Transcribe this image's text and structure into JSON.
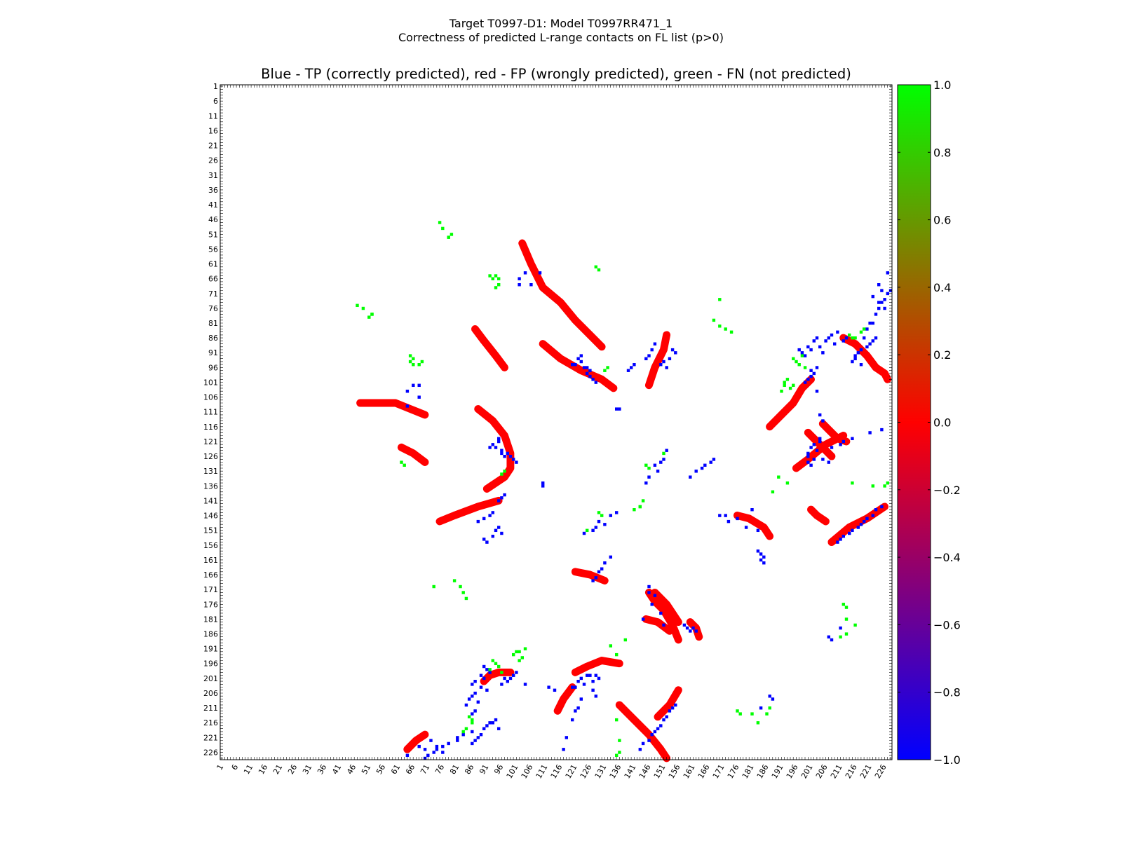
{
  "figure": {
    "title_line1": "Target T0997-D1: Model T0997RR471_1",
    "title_line2": "Correctness of predicted L-range contacts on FL list (p>0)",
    "plot_title": "Blue - TP (correctly predicted), red - FP (wrongly predicted), green - FN (not predicted)"
  },
  "chart_data": {
    "type": "heatmap",
    "n": 228,
    "ticks": [
      1,
      6,
      11,
      16,
      21,
      26,
      31,
      36,
      41,
      46,
      51,
      56,
      61,
      66,
      71,
      76,
      81,
      86,
      91,
      96,
      101,
      106,
      111,
      116,
      121,
      126,
      131,
      136,
      141,
      146,
      151,
      156,
      161,
      166,
      171,
      176,
      181,
      186,
      191,
      196,
      201,
      206,
      211,
      216,
      221,
      226
    ],
    "colorbar": {
      "range": [
        -1.0,
        1.0
      ],
      "tick_values": [
        1.0,
        0.8,
        0.6,
        0.4,
        0.2,
        0.0,
        -0.2,
        -0.4,
        -0.6,
        -0.8,
        -1.0
      ],
      "tick_labels": [
        "1.0",
        "0.8",
        "0.6",
        "0.4",
        "0.2",
        "0.0",
        "−0.2",
        "−0.4",
        "−0.6",
        "−0.8",
        "−1.0"
      ],
      "colors": [
        "#0000ff",
        "#ff0000",
        "#00ff00"
      ]
    },
    "categories": {
      "TP": {
        "value": -1,
        "color": "#0000ff"
      },
      "FP": {
        "value": 0,
        "color": "#ff0000"
      },
      "FN": {
        "value": 1,
        "color": "#00ff00"
      }
    },
    "contacts_TP": [
      [
        64,
        104
      ],
      [
        64,
        109
      ],
      [
        66,
        102
      ],
      [
        68,
        102
      ],
      [
        68,
        106
      ],
      [
        95,
        120
      ],
      [
        95,
        121
      ],
      [
        93,
        122
      ],
      [
        92,
        123
      ],
      [
        110,
        135
      ],
      [
        110,
        136
      ],
      [
        130,
        164
      ],
      [
        131,
        162
      ],
      [
        133,
        160
      ],
      [
        129,
        165
      ],
      [
        128,
        167
      ],
      [
        127,
        168
      ],
      [
        150,
        128
      ],
      [
        151,
        127
      ],
      [
        152,
        124
      ],
      [
        148,
        129
      ],
      [
        149,
        131
      ],
      [
        146,
        133
      ],
      [
        145,
        135
      ],
      [
        129,
        201
      ],
      [
        127,
        205
      ],
      [
        128,
        207
      ],
      [
        123,
        208
      ],
      [
        122,
        211
      ],
      [
        121,
        212
      ],
      [
        120,
        215
      ],
      [
        118,
        221
      ],
      [
        117,
        225
      ],
      [
        123,
        94
      ],
      [
        124,
        96
      ],
      [
        125,
        98
      ],
      [
        126,
        99
      ],
      [
        127,
        100
      ],
      [
        128,
        101
      ],
      [
        125,
        96
      ],
      [
        126,
        97
      ],
      [
        140,
        96
      ],
      [
        141,
        95
      ],
      [
        139,
        97
      ],
      [
        150,
        95
      ],
      [
        151,
        94
      ],
      [
        152,
        96
      ],
      [
        154,
        90
      ],
      [
        155,
        91
      ],
      [
        153,
        93
      ],
      [
        147,
        90
      ],
      [
        146,
        92
      ],
      [
        148,
        88
      ],
      [
        145,
        93
      ],
      [
        173,
        148
      ],
      [
        172,
        146
      ],
      [
        170,
        146
      ],
      [
        176,
        147
      ],
      [
        179,
        150
      ],
      [
        181,
        144
      ],
      [
        183,
        151
      ],
      [
        197,
        90
      ],
      [
        198,
        91
      ],
      [
        199,
        92
      ],
      [
        200,
        89
      ],
      [
        201,
        90
      ],
      [
        202,
        87
      ],
      [
        203,
        86
      ],
      [
        204,
        89
      ],
      [
        205,
        91
      ],
      [
        206,
        87
      ],
      [
        207,
        86
      ],
      [
        208,
        85
      ],
      [
        209,
        88
      ],
      [
        210,
        84
      ],
      [
        212,
        87
      ],
      [
        213,
        86
      ],
      [
        219,
        86
      ],
      [
        220,
        83
      ],
      [
        221,
        81
      ],
      [
        222,
        81
      ],
      [
        223,
        78
      ],
      [
        224,
        76
      ],
      [
        225,
        74
      ],
      [
        226,
        73
      ],
      [
        227,
        71
      ],
      [
        228,
        70
      ],
      [
        97,
        201
      ],
      [
        98,
        202
      ],
      [
        99,
        201
      ],
      [
        100,
        200
      ],
      [
        101,
        199
      ],
      [
        96,
        203
      ],
      [
        104,
        203
      ],
      [
        112,
        204
      ],
      [
        114,
        205
      ],
      [
        120,
        204
      ],
      [
        121,
        204
      ],
      [
        122,
        202
      ],
      [
        123,
        201
      ],
      [
        124,
        203
      ],
      [
        125,
        200
      ],
      [
        126,
        200
      ],
      [
        127,
        202
      ],
      [
        128,
        200
      ],
      [
        146,
        222
      ],
      [
        147,
        220
      ],
      [
        148,
        219
      ],
      [
        149,
        218
      ],
      [
        150,
        217
      ],
      [
        151,
        215
      ],
      [
        152,
        214
      ],
      [
        153,
        212
      ],
      [
        154,
        211
      ],
      [
        155,
        210
      ],
      [
        144,
        223
      ],
      [
        143,
        225
      ],
      [
        158,
        183
      ],
      [
        159,
        184
      ],
      [
        160,
        185
      ],
      [
        161,
        184
      ],
      [
        162,
        185
      ],
      [
        86,
        223
      ],
      [
        87,
        222
      ],
      [
        88,
        221
      ],
      [
        89,
        220
      ],
      [
        90,
        218
      ],
      [
        91,
        217
      ],
      [
        92,
        216
      ],
      [
        93,
        216
      ],
      [
        94,
        215
      ],
      [
        95,
        218
      ],
      [
        64,
        227
      ],
      [
        68,
        224
      ],
      [
        70,
        225
      ],
      [
        72,
        222
      ],
      [
        74,
        224
      ],
      [
        76,
        226
      ],
      [
        187,
        207
      ],
      [
        188,
        208
      ],
      [
        184,
        211
      ]
    ],
    "contacts_FN": [
      [
        47,
        75
      ],
      [
        49,
        76
      ],
      [
        52,
        78
      ],
      [
        65,
        94
      ],
      [
        66,
        95
      ],
      [
        68,
        95
      ],
      [
        78,
        52
      ],
      [
        79,
        51
      ],
      [
        92,
        65
      ],
      [
        93,
        66
      ],
      [
        94,
        69
      ],
      [
        100,
        193
      ],
      [
        101,
        192
      ],
      [
        102,
        195
      ],
      [
        104,
        191
      ],
      [
        103,
        194
      ],
      [
        135,
        215
      ],
      [
        136,
        222
      ],
      [
        141,
        144
      ],
      [
        143,
        143
      ],
      [
        131,
        97
      ],
      [
        132,
        96
      ],
      [
        170,
        73
      ],
      [
        172,
        83
      ],
      [
        174,
        84
      ],
      [
        195,
        93
      ],
      [
        196,
        94
      ],
      [
        197,
        95
      ],
      [
        198,
        92
      ],
      [
        199,
        96
      ],
      [
        192,
        102
      ],
      [
        186,
        213
      ],
      [
        187,
        211
      ],
      [
        177,
        213
      ],
      [
        176,
        212
      ],
      [
        218,
        84
      ],
      [
        219,
        83
      ],
      [
        216,
        86
      ],
      [
        213,
        181
      ],
      [
        216,
        183
      ],
      [
        145,
        129
      ],
      [
        146,
        130
      ],
      [
        151,
        125
      ],
      [
        226,
        136
      ],
      [
        227,
        135
      ],
      [
        62,
        128
      ],
      [
        63,
        129
      ],
      [
        133,
        190
      ],
      [
        135,
        193
      ],
      [
        138,
        188
      ],
      [
        80,
        168
      ],
      [
        82,
        170
      ],
      [
        85,
        214
      ],
      [
        86,
        215
      ]
    ]
  }
}
